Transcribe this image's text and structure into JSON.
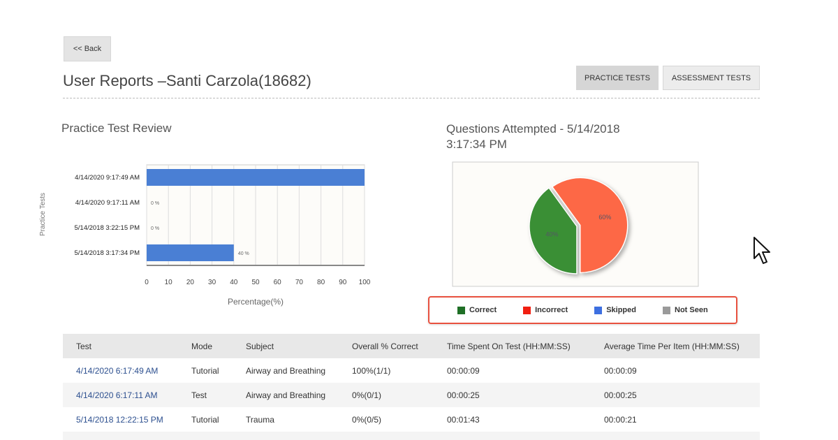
{
  "back_label": "<< Back",
  "title": "User Reports –Santi Carzola(18682)",
  "tabs": [
    {
      "label": "PRACTICE TESTS",
      "active": true
    },
    {
      "label": "ASSESSMENT TESTS",
      "active": false
    }
  ],
  "review_title": "Practice Test Review",
  "pie_title": "Questions Attempted - 5/14/2018 3:17:34 PM",
  "chart_data": [
    {
      "type": "bar",
      "orientation": "horizontal",
      "categories": [
        "4/14/2020 9:17:49 AM",
        "4/14/2020 9:17:11 AM",
        "5/14/2018 3:22:15 PM",
        "5/14/2018 3:17:34 PM"
      ],
      "values": [
        100,
        0,
        0,
        40
      ],
      "data_labels": [
        "",
        "0 %",
        "0 %",
        "40 %"
      ],
      "xlabel": "Percentage(%)",
      "ylabel": "Practice Tests",
      "xlim": [
        0,
        100
      ],
      "ticks": [
        "0",
        "10",
        "20",
        "30",
        "40",
        "50",
        "60",
        "70",
        "80",
        "90",
        "100"
      ],
      "grid": true,
      "color": "#4a7fd4"
    },
    {
      "type": "pie",
      "slices": [
        {
          "label": "Correct",
          "value": 40,
          "text": "40%",
          "color": "#3a8f35"
        },
        {
          "label": "Incorrect",
          "value": 60,
          "text": "60%",
          "color": "#fd6846"
        },
        {
          "label": "Skipped",
          "value": 0,
          "color": "#3d6fe0"
        },
        {
          "label": "Not Seen",
          "value": 0,
          "color": "#999999"
        }
      ],
      "legend": "bottom"
    }
  ],
  "legend": [
    {
      "label": "Correct",
      "color": "#1f6f26"
    },
    {
      "label": "Incorrect",
      "color": "#f11f11"
    },
    {
      "label": "Skipped",
      "color": "#3d6fe0"
    },
    {
      "label": "Not Seen",
      "color": "#9a9a9a"
    }
  ],
  "table": {
    "headers": [
      "Test",
      "Mode",
      "Subject",
      "Overall % Correct",
      "Time Spent On Test (HH:MM:SS)",
      "Average Time Per Item (HH:MM:SS)"
    ],
    "rows": [
      [
        "4/14/2020 6:17:49 AM",
        "Tutorial",
        "Airway and Breathing",
        "100%(1/1)",
        "00:00:09",
        "00:00:09"
      ],
      [
        "4/14/2020 6:17:11 AM",
        "Test",
        "Airway and Breathing",
        "0%(0/1)",
        "00:00:25",
        "00:00:25"
      ],
      [
        "5/14/2018 12:22:15 PM",
        "Tutorial",
        "Trauma",
        "0%(0/5)",
        "00:01:43",
        "00:00:21"
      ]
    ]
  }
}
